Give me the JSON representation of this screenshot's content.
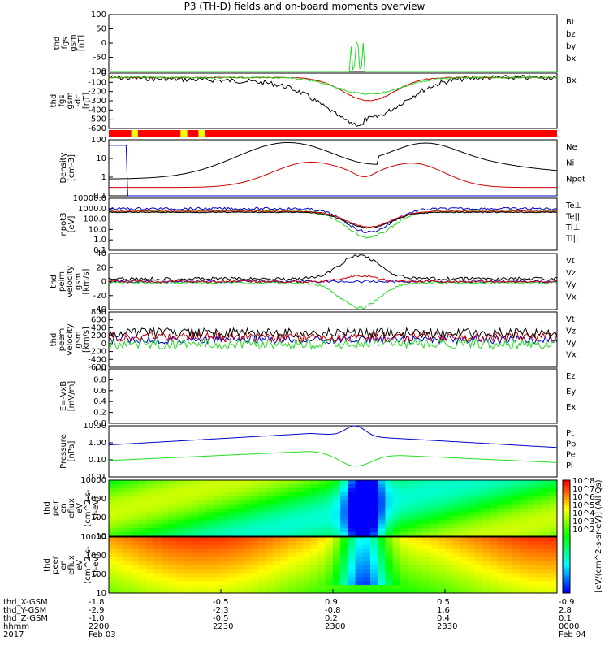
{
  "title": "P3 (TH-D) fields and on-board moments overview",
  "colors": {
    "black": "#000000",
    "red": "#cc0000",
    "green": "#22dd22",
    "blue": "#0000cc",
    "olive": "#999900"
  },
  "chart_data": [
    {
      "type": "line",
      "id": "fgs",
      "ylabel": [
        "thd",
        "fgs",
        "gsm",
        "[nT]"
      ],
      "yticks": [
        "100",
        "50",
        "0",
        "-50",
        "-100"
      ],
      "legend": [
        {
          "text": "Bt",
          "color": "black"
        },
        {
          "text": "bz",
          "color": "red"
        },
        {
          "text": "by",
          "color": "green"
        },
        {
          "text": "bx",
          "color": "blue"
        }
      ]
    },
    {
      "type": "line",
      "id": "fgs-dc",
      "ylabel": [
        "thd",
        "fgs",
        "gsm",
        "-dc",
        "[nT]"
      ],
      "yticks": [
        "0",
        "-100",
        "-200",
        "-300",
        "-400",
        "-500",
        "-600"
      ],
      "legend": [
        {
          "text": "Bx",
          "color": "olive"
        }
      ]
    },
    {
      "type": "bar",
      "id": "flag-bar",
      "description": "state flag bar"
    },
    {
      "type": "line",
      "id": "density",
      "ylabel": [
        "Density",
        "[cm-3]"
      ],
      "yticks": [
        "100",
        "10",
        "1",
        "0.1"
      ],
      "legend": [
        {
          "text": "Ne",
          "color": "red"
        },
        {
          "text": "Ni",
          "color": "black"
        },
        {
          "text": "Npot",
          "color": "blue"
        }
      ]
    },
    {
      "type": "line",
      "id": "temp",
      "ylabel": [
        "npot3",
        "[eV]"
      ],
      "yticks": [
        "10000.0",
        "1000.0",
        "100.0",
        "10.0",
        "1.0",
        "0.1"
      ],
      "legend": [
        {
          "text": "Te⊥",
          "color": "red"
        },
        {
          "text": "Te||",
          "color": "black"
        },
        {
          "text": "Ti⊥",
          "color": "red"
        },
        {
          "text": "Ti||",
          "color": "green"
        }
      ]
    },
    {
      "type": "line",
      "id": "peim",
      "ylabel": [
        "thd",
        "peim",
        "velocity",
        "gsm",
        "[km/s]"
      ],
      "yticks": [
        "40",
        "20",
        "0",
        "-20",
        "-40"
      ],
      "legend": [
        {
          "text": "Vt",
          "color": "black"
        },
        {
          "text": "Vz",
          "color": "red"
        },
        {
          "text": "Vy",
          "color": "green"
        },
        {
          "text": "Vx",
          "color": "blue"
        }
      ]
    },
    {
      "type": "line",
      "id": "peem",
      "ylabel": [
        "thd",
        "peem",
        "velocity",
        "gsm",
        "[km/s]"
      ],
      "yticks": [
        "800",
        "600",
        "400",
        "200",
        "0",
        "-200",
        "-400",
        "-600"
      ],
      "legend": [
        {
          "text": "Vt",
          "color": "black"
        },
        {
          "text": "Vz",
          "color": "red"
        },
        {
          "text": "Vy",
          "color": "green"
        },
        {
          "text": "Vx",
          "color": "blue"
        }
      ]
    },
    {
      "type": "line",
      "id": "efield",
      "ylabel": [
        "E=-VxB",
        "[mV/m]"
      ],
      "yticks": [
        "1.0",
        "0.8",
        "0.6",
        "0.4",
        "0.2",
        "0.0"
      ],
      "legend": [
        {
          "text": "Ez",
          "color": "red"
        },
        {
          "text": "Ey",
          "color": "green"
        },
        {
          "text": "Ex",
          "color": "blue"
        }
      ]
    },
    {
      "type": "line",
      "id": "pressure",
      "ylabel": [
        "Pressure",
        "[nPa]"
      ],
      "yticks": [
        "10.00",
        "1.00",
        "0.10",
        "0.01"
      ],
      "legend": [
        {
          "text": "Pt",
          "color": "black"
        },
        {
          "text": "Pb",
          "color": "red"
        },
        {
          "text": "Pe",
          "color": "green"
        },
        {
          "text": "Pi",
          "color": "blue"
        }
      ]
    },
    {
      "type": "heatmap",
      "id": "peir",
      "ylabel": [
        "thd",
        "peir",
        "en",
        "eflux",
        "eV",
        "(cm^2-s-",
        "sr-eV)"
      ],
      "yticks": [
        "10000",
        "1000",
        "100",
        "10"
      ]
    },
    {
      "type": "heatmap",
      "id": "peer",
      "ylabel": [
        "thd",
        "peer",
        "en",
        "eflux",
        "eV",
        "(cm^2-s-",
        "sr-eV)"
      ],
      "yticks": [
        "10000",
        "1000",
        "100",
        "10"
      ]
    }
  ],
  "colorbar": {
    "label": "[eV/(cm^2-s-sr-eV)] (All Qs)",
    "ticks": [
      "10^8",
      "10^7",
      "10^6",
      "10^5",
      "10^4",
      "10^3",
      "10^2"
    ],
    "ticks_lower": [
      "10^8",
      "10^7",
      "10^6",
      "10^5",
      "10^4",
      "10^3",
      "10^2"
    ]
  },
  "xaxis": {
    "rows": [
      {
        "label": "thd_X-GSM",
        "values": [
          "-1.8",
          "-0.5",
          "0.9",
          "0.5",
          "-0.9"
        ]
      },
      {
        "label": "thd_Y-GSM",
        "values": [
          "-2.9",
          "-2.3",
          "-0.8",
          "1.6",
          "2.8"
        ]
      },
      {
        "label": "thd_Z-GSM",
        "values": [
          "-1.0",
          "-0.5",
          "0.2",
          "0.4",
          "0.1"
        ]
      },
      {
        "label": "hhmm",
        "values": [
          "2200",
          "2230",
          "2300",
          "2330",
          "0000"
        ]
      },
      {
        "label": "2017",
        "values": [
          "Feb 03",
          "",
          "",
          "",
          "Feb 04"
        ]
      }
    ]
  }
}
